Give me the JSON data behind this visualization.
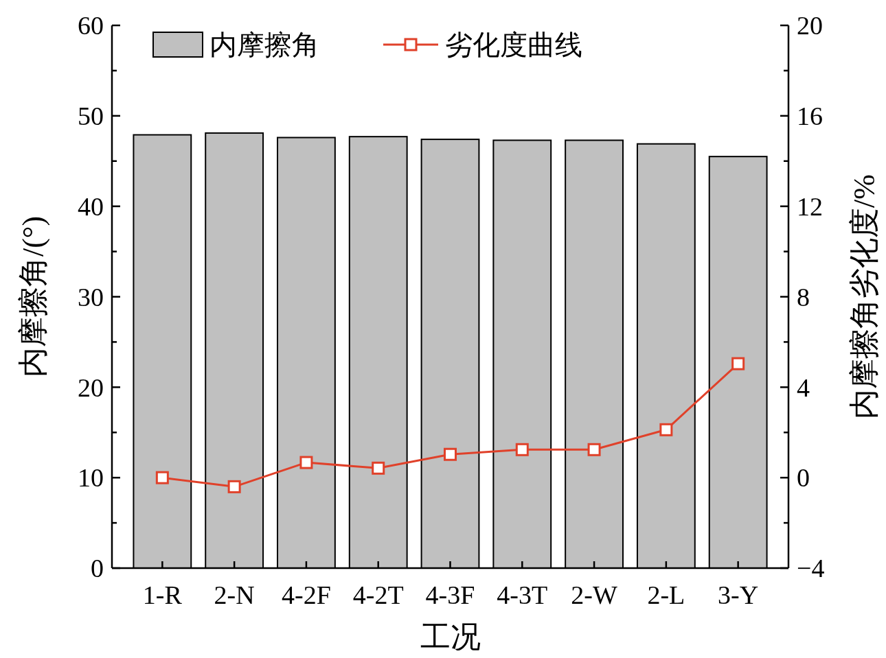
{
  "chart_data": {
    "type": "bar",
    "xlabel": "工况",
    "ylabel": "内摩擦角/(°)",
    "y2label": "内摩擦角劣化度/%",
    "categories": [
      "1-R",
      "2-N",
      "4-2F",
      "4-2T",
      "4-3F",
      "4-3T",
      "2-W",
      "2-L",
      "3-Y"
    ],
    "series": [
      {
        "name": "内摩擦角",
        "color": "#c0c0c0",
        "values": [
          47.9,
          48.1,
          47.6,
          47.7,
          47.4,
          47.3,
          47.3,
          46.9,
          45.5
        ]
      },
      {
        "name": "劣化度曲线",
        "type": "line",
        "axis": "y2",
        "color": "#e0412a",
        "marker": "square",
        "values": [
          0,
          -0.4,
          0.67,
          0.42,
          1.03,
          1.24,
          1.24,
          2.12,
          5.04
        ]
      }
    ],
    "ylim": [
      0,
      60
    ],
    "yticks": [
      0,
      {
        "value": 5,
        "label": null
      },
      10,
      {
        "value": 15,
        "label": null
      },
      20,
      {
        "value": 25,
        "label": null
      },
      30,
      {
        "value": 35,
        "label": null
      },
      40,
      {
        "value": 45,
        "label": null
      },
      50,
      {
        "value": 55,
        "label": null
      },
      60
    ],
    "y2lim": [
      -4,
      20
    ],
    "y2ticks": [
      {
        "value": -4,
        "label": "−4"
      },
      {
        "value": -2,
        "label": null
      },
      0,
      {
        "value": 2,
        "label": null
      },
      4,
      {
        "value": 6,
        "label": null
      },
      8,
      {
        "value": 10,
        "label": null
      },
      12,
      {
        "value": 14,
        "label": null
      },
      16,
      {
        "value": 18,
        "label": null
      },
      20
    ],
    "legend": "top",
    "grid": false
  }
}
